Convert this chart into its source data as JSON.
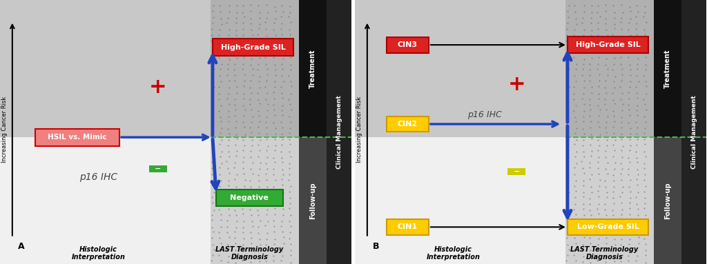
{
  "fig_width": 10.24,
  "fig_height": 3.83,
  "panel_A": {
    "label": "A",
    "box_hsil": {
      "text": "HSIL vs. Mimic",
      "facecolor": "#f08080",
      "edgecolor": "#cc0000",
      "text_color": "white"
    },
    "box_highgrade": {
      "text": "High-Grade SIL",
      "facecolor": "#dd2222",
      "edgecolor": "#aa0000",
      "text_color": "white"
    },
    "box_negative": {
      "text": "Negative",
      "facecolor": "#33aa33",
      "edgecolor": "#117711",
      "text_color": "white"
    },
    "plus_color": "#cc0000",
    "minus_color": "#33aa33",
    "arrow_color": "#2244bb",
    "p16_text": "p16 IHC",
    "ylabel_text": "Increasing Cancer Risk",
    "xlabel_left": "Histologic\nInterpretation",
    "xlabel_right": "LAST Terminology\nDiagnosis",
    "treatment_text": "Treatment",
    "followup_text": "Follow-up",
    "clinical_text": "Clinical Management"
  },
  "panel_B": {
    "label": "B",
    "box_cin3": {
      "text": "CIN3",
      "facecolor": "#dd2222",
      "edgecolor": "#aa0000",
      "text_color": "white"
    },
    "box_cin2": {
      "text": "CIN2",
      "facecolor": "#ffcc00",
      "edgecolor": "#cc9900",
      "text_color": "white"
    },
    "box_cin1": {
      "text": "CIN1",
      "facecolor": "#ffcc00",
      "edgecolor": "#cc9900",
      "text_color": "white"
    },
    "box_highgrade": {
      "text": "High-Grade SIL",
      "facecolor": "#dd2222",
      "edgecolor": "#aa0000",
      "text_color": "white"
    },
    "box_lowgrade": {
      "text": "Low-Grade SIL",
      "facecolor": "#ffcc00",
      "edgecolor": "#cc9900",
      "text_color": "white"
    },
    "plus_color": "#cc0000",
    "minus_color": "#cccc00",
    "arrow_color": "#2244bb",
    "p16_text": "p16 IHC",
    "ylabel_text": "Increasing Cancer Risk",
    "xlabel_left": "Histologic\nInterpretation",
    "xlabel_right": "LAST Terminology\nDiagnosis",
    "treatment_text": "Treatment",
    "followup_text": "Follow-up",
    "clinical_text": "Clinical Management"
  }
}
